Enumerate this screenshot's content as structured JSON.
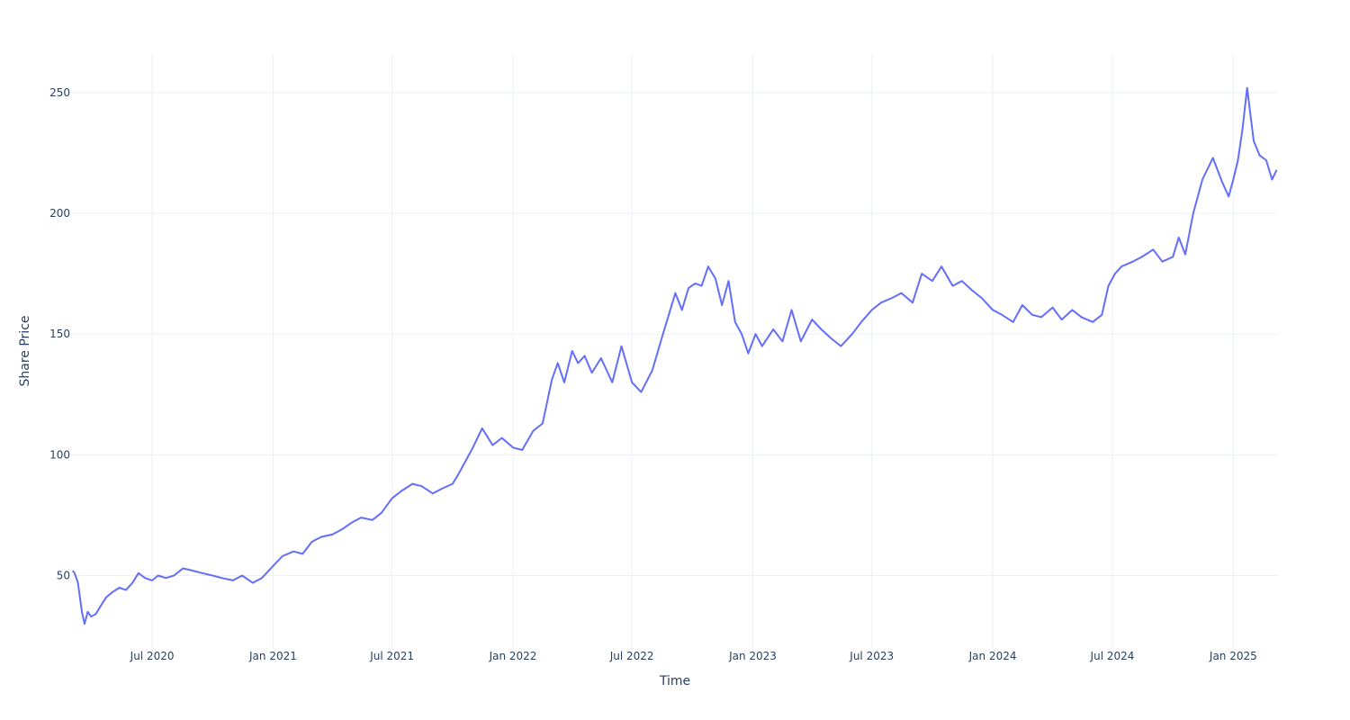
{
  "chart_data": {
    "type": "line",
    "title": "",
    "xlabel": "Time",
    "ylabel": "Share Price",
    "x_range": [
      "2020-03-01",
      "2025-03-10"
    ],
    "ylim": [
      20,
      266
    ],
    "grid": true,
    "legend": "none",
    "x_ticks": [
      {
        "date": "2020-07-01",
        "label": "Jul 2020"
      },
      {
        "date": "2021-01-01",
        "label": "Jan 2021"
      },
      {
        "date": "2021-07-01",
        "label": "Jul 2021"
      },
      {
        "date": "2022-01-01",
        "label": "Jan 2022"
      },
      {
        "date": "2022-07-01",
        "label": "Jul 2022"
      },
      {
        "date": "2023-01-01",
        "label": "Jan 2023"
      },
      {
        "date": "2023-07-01",
        "label": "Jul 2023"
      },
      {
        "date": "2024-01-01",
        "label": "Jan 2024"
      },
      {
        "date": "2024-07-01",
        "label": "Jul 2024"
      },
      {
        "date": "2025-01-01",
        "label": "Jan 2025"
      }
    ],
    "y_ticks": [
      {
        "value": 50,
        "label": "50"
      },
      {
        "value": 100,
        "label": "100"
      },
      {
        "value": 150,
        "label": "150"
      },
      {
        "value": 200,
        "label": "200"
      },
      {
        "value": 250,
        "label": "250"
      }
    ],
    "series": [
      {
        "color": "#636efa",
        "x": [
          "2020-03-02",
          "2020-03-05",
          "2020-03-10",
          "2020-03-16",
          "2020-03-20",
          "2020-03-25",
          "2020-03-30",
          "2020-04-06",
          "2020-04-15",
          "2020-04-22",
          "2020-05-01",
          "2020-05-12",
          "2020-05-22",
          "2020-06-01",
          "2020-06-10",
          "2020-06-20",
          "2020-07-01",
          "2020-07-10",
          "2020-07-22",
          "2020-08-03",
          "2020-08-17",
          "2020-09-01",
          "2020-09-15",
          "2020-10-01",
          "2020-10-15",
          "2020-11-01",
          "2020-11-15",
          "2020-12-01",
          "2020-12-15",
          "2021-01-01",
          "2021-01-15",
          "2021-02-01",
          "2021-02-15",
          "2021-03-01",
          "2021-03-15",
          "2021-04-01",
          "2021-04-15",
          "2021-05-01",
          "2021-05-15",
          "2021-06-01",
          "2021-06-15",
          "2021-07-01",
          "2021-07-15",
          "2021-08-01",
          "2021-08-15",
          "2021-09-01",
          "2021-09-15",
          "2021-10-01",
          "2021-10-10",
          "2021-10-20",
          "2021-11-01",
          "2021-11-15",
          "2021-12-01",
          "2021-12-15",
          "2022-01-01",
          "2022-01-15",
          "2022-02-01",
          "2022-02-15",
          "2022-03-01",
          "2022-03-10",
          "2022-03-20",
          "2022-04-01",
          "2022-04-10",
          "2022-04-20",
          "2022-05-01",
          "2022-05-15",
          "2022-06-01",
          "2022-06-15",
          "2022-07-01",
          "2022-07-15",
          "2022-08-01",
          "2022-08-15",
          "2022-08-25",
          "2022-09-05",
          "2022-09-15",
          "2022-09-25",
          "2022-10-05",
          "2022-10-15",
          "2022-10-25",
          "2022-11-05",
          "2022-11-15",
          "2022-11-25",
          "2022-12-05",
          "2022-12-15",
          "2022-12-25",
          "2023-01-05",
          "2023-01-15",
          "2023-02-01",
          "2023-02-15",
          "2023-03-01",
          "2023-03-15",
          "2023-04-01",
          "2023-04-15",
          "2023-05-01",
          "2023-05-15",
          "2023-06-01",
          "2023-06-15",
          "2023-07-01",
          "2023-07-15",
          "2023-08-01",
          "2023-08-15",
          "2023-09-01",
          "2023-09-15",
          "2023-10-01",
          "2023-10-15",
          "2023-11-01",
          "2023-11-15",
          "2023-12-01",
          "2023-12-15",
          "2024-01-01",
          "2024-01-15",
          "2024-02-01",
          "2024-02-15",
          "2024-03-01",
          "2024-03-15",
          "2024-04-01",
          "2024-04-15",
          "2024-05-01",
          "2024-05-15",
          "2024-06-01",
          "2024-06-15",
          "2024-06-25",
          "2024-07-05",
          "2024-07-15",
          "2024-08-01",
          "2024-08-15",
          "2024-09-01",
          "2024-09-15",
          "2024-10-01",
          "2024-10-10",
          "2024-10-20",
          "2024-11-01",
          "2024-11-15",
          "2024-12-01",
          "2024-12-15",
          "2024-12-25",
          "2025-01-01",
          "2025-01-08",
          "2025-01-15",
          "2025-01-22",
          "2025-02-01",
          "2025-02-10",
          "2025-02-20",
          "2025-03-01",
          "2025-03-08"
        ],
        "y": [
          52,
          51,
          47,
          35,
          30,
          35,
          33,
          34,
          38,
          41,
          43,
          45,
          44,
          47,
          51,
          49,
          48,
          50,
          49,
          50,
          53,
          52,
          51,
          50,
          49,
          48,
          50,
          47,
          49,
          54,
          58,
          60,
          59,
          64,
          66,
          67,
          69,
          72,
          74,
          73,
          76,
          82,
          85,
          88,
          87,
          84,
          86,
          88,
          92,
          97,
          103,
          111,
          104,
          107,
          103,
          102,
          110,
          113,
          131,
          138,
          130,
          143,
          138,
          141,
          134,
          140,
          130,
          145,
          130,
          126,
          135,
          148,
          157,
          167,
          160,
          169,
          171,
          170,
          178,
          173,
          162,
          172,
          155,
          150,
          142,
          150,
          145,
          152,
          147,
          160,
          147,
          156,
          152,
          148,
          145,
          150,
          155,
          160,
          163,
          165,
          167,
          163,
          175,
          172,
          178,
          170,
          172,
          168,
          165,
          160,
          158,
          155,
          162,
          158,
          157,
          161,
          156,
          160,
          157,
          155,
          158,
          170,
          175,
          178,
          180,
          182,
          185,
          180,
          182,
          190,
          183,
          200,
          214,
          223,
          213,
          207,
          214,
          222,
          235,
          252,
          230,
          224,
          222,
          214,
          218
        ]
      }
    ]
  }
}
